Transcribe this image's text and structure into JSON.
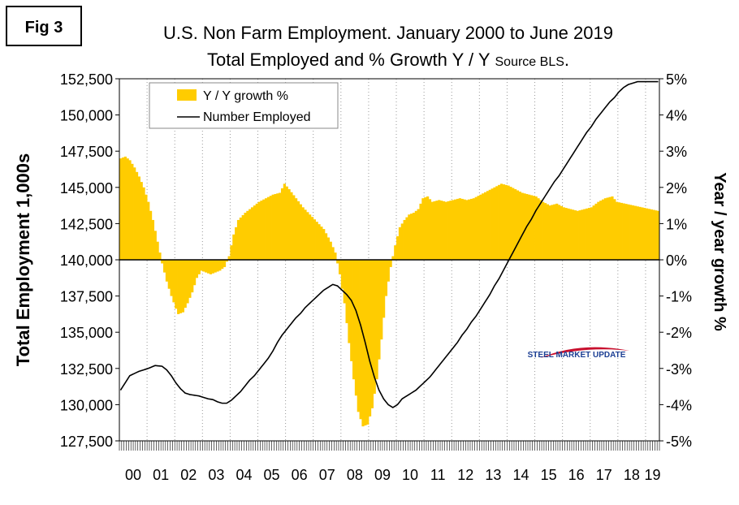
{
  "figure_label": "Fig 3",
  "chart_data": {
    "type": "bar",
    "title_line1": "U.S. Non Farm Employment. January 2000 to June 2019",
    "title_line2": "Total Employed and % Growth Y / Y",
    "title_source": "Source BLS",
    "title_suffix": ".",
    "ylabel_left": "Total Employment 1,000s",
    "ylabel_right": "Year / year growth %",
    "watermark": "STEEL MARKET UPDATE",
    "y_left_ticks": [
      "127,500",
      "130,000",
      "132,500",
      "135,000",
      "137,500",
      "140,000",
      "142,500",
      "145,000",
      "147,500",
      "150,000",
      "152,500"
    ],
    "y_left_lim": [
      127500,
      152500
    ],
    "y_right_ticks": [
      "-5%",
      "-4%",
      "-3%",
      "-2%",
      "-1%",
      "0%",
      "1%",
      "2%",
      "3%",
      "4%",
      "5%"
    ],
    "y_right_lim": [
      -5,
      5
    ],
    "x_ticks": [
      "00",
      "01",
      "02",
      "03",
      "04",
      "05",
      "06",
      "07",
      "08",
      "09",
      "10",
      "11",
      "12",
      "13",
      "14",
      "15",
      "16",
      "17",
      "18",
      "19"
    ],
    "x_range_months": "January 2000 to June 2019",
    "grid": "vertical dotted at year boundaries",
    "legend_position": "top-left",
    "colors": {
      "growth": "#ffcc00",
      "employed": "#000000"
    },
    "series": [
      {
        "name": "Y / Y growth %",
        "type": "bar",
        "axis": "right",
        "points": [
          [
            0,
            2.8
          ],
          [
            2,
            2.85
          ],
          [
            4,
            2.75
          ],
          [
            6,
            2.55
          ],
          [
            8,
            2.3
          ],
          [
            10,
            2.0
          ],
          [
            12,
            1.6
          ],
          [
            14,
            1.1
          ],
          [
            16,
            0.5
          ],
          [
            18,
            -0.1
          ],
          [
            20,
            -0.6
          ],
          [
            22,
            -1.0
          ],
          [
            24,
            -1.35
          ],
          [
            25,
            -1.5
          ],
          [
            27,
            -1.45
          ],
          [
            29,
            -1.2
          ],
          [
            31,
            -0.9
          ],
          [
            33,
            -0.5
          ],
          [
            35,
            -0.3
          ],
          [
            37,
            -0.35
          ],
          [
            39,
            -0.4
          ],
          [
            41,
            -0.35
          ],
          [
            43,
            -0.3
          ],
          [
            45,
            -0.2
          ],
          [
            47,
            0.1
          ],
          [
            49,
            0.7
          ],
          [
            51,
            1.1
          ],
          [
            54,
            1.3
          ],
          [
            57,
            1.45
          ],
          [
            60,
            1.6
          ],
          [
            63,
            1.7
          ],
          [
            66,
            1.8
          ],
          [
            69,
            1.85
          ],
          [
            71,
            2.1
          ],
          [
            73,
            1.95
          ],
          [
            76,
            1.7
          ],
          [
            79,
            1.45
          ],
          [
            82,
            1.25
          ],
          [
            85,
            1.05
          ],
          [
            88,
            0.85
          ],
          [
            91,
            0.5
          ],
          [
            93,
            0.2
          ],
          [
            95,
            -0.4
          ],
          [
            97,
            -1.2
          ],
          [
            99,
            -2.3
          ],
          [
            101,
            -3.3
          ],
          [
            103,
            -4.2
          ],
          [
            105,
            -4.6
          ],
          [
            107,
            -4.55
          ],
          [
            109,
            -4.1
          ],
          [
            111,
            -3.3
          ],
          [
            113,
            -2.2
          ],
          [
            115,
            -1.0
          ],
          [
            117,
            -0.2
          ],
          [
            119,
            0.4
          ],
          [
            121,
            0.9
          ],
          [
            123,
            1.1
          ],
          [
            125,
            1.25
          ],
          [
            127,
            1.3
          ],
          [
            129,
            1.4
          ],
          [
            131,
            1.7
          ],
          [
            133,
            1.75
          ],
          [
            135,
            1.6
          ],
          [
            138,
            1.65
          ],
          [
            141,
            1.6
          ],
          [
            144,
            1.65
          ],
          [
            147,
            1.7
          ],
          [
            150,
            1.65
          ],
          [
            153,
            1.7
          ],
          [
            156,
            1.8
          ],
          [
            159,
            1.9
          ],
          [
            162,
            2.0
          ],
          [
            165,
            2.1
          ],
          [
            168,
            2.05
          ],
          [
            171,
            1.95
          ],
          [
            174,
            1.85
          ],
          [
            177,
            1.8
          ],
          [
            180,
            1.75
          ],
          [
            183,
            1.6
          ],
          [
            186,
            1.5
          ],
          [
            189,
            1.55
          ],
          [
            192,
            1.45
          ],
          [
            195,
            1.4
          ],
          [
            198,
            1.35
          ],
          [
            201,
            1.4
          ],
          [
            204,
            1.45
          ],
          [
            207,
            1.6
          ],
          [
            210,
            1.7
          ],
          [
            213,
            1.75
          ],
          [
            215,
            1.6
          ],
          [
            233,
            1.35
          ]
        ]
      },
      {
        "name": "Number Employed",
        "type": "line",
        "axis": "left",
        "points": [
          [
            0,
            131000
          ],
          [
            4,
            132000
          ],
          [
            8,
            132300
          ],
          [
            12,
            132500
          ],
          [
            15,
            132700
          ],
          [
            18,
            132650
          ],
          [
            20,
            132400
          ],
          [
            22,
            132000
          ],
          [
            24,
            131500
          ],
          [
            26,
            131100
          ],
          [
            28,
            130800
          ],
          [
            30,
            130700
          ],
          [
            32,
            130650
          ],
          [
            34,
            130600
          ],
          [
            36,
            130500
          ],
          [
            38,
            130400
          ],
          [
            40,
            130350
          ],
          [
            42,
            130200
          ],
          [
            44,
            130100
          ],
          [
            46,
            130100
          ],
          [
            48,
            130300
          ],
          [
            50,
            130600
          ],
          [
            52,
            130900
          ],
          [
            54,
            131300
          ],
          [
            56,
            131700
          ],
          [
            58,
            132000
          ],
          [
            60,
            132400
          ],
          [
            62,
            132800
          ],
          [
            64,
            133200
          ],
          [
            66,
            133700
          ],
          [
            68,
            134300
          ],
          [
            70,
            134800
          ],
          [
            72,
            135200
          ],
          [
            74,
            135600
          ],
          [
            76,
            136000
          ],
          [
            78,
            136300
          ],
          [
            80,
            136700
          ],
          [
            82,
            137000
          ],
          [
            84,
            137300
          ],
          [
            86,
            137600
          ],
          [
            88,
            137900
          ],
          [
            90,
            138100
          ],
          [
            92,
            138300
          ],
          [
            94,
            138200
          ],
          [
            96,
            137900
          ],
          [
            98,
            137600
          ],
          [
            100,
            137200
          ],
          [
            102,
            136500
          ],
          [
            104,
            135500
          ],
          [
            106,
            134300
          ],
          [
            108,
            133000
          ],
          [
            110,
            131900
          ],
          [
            112,
            131000
          ],
          [
            114,
            130400
          ],
          [
            116,
            130000
          ],
          [
            118,
            129800
          ],
          [
            120,
            130000
          ],
          [
            122,
            130400
          ],
          [
            124,
            130600
          ],
          [
            126,
            130800
          ],
          [
            128,
            131000
          ],
          [
            130,
            131300
          ],
          [
            132,
            131600
          ],
          [
            134,
            131900
          ],
          [
            136,
            132300
          ],
          [
            138,
            132700
          ],
          [
            140,
            133100
          ],
          [
            142,
            133500
          ],
          [
            144,
            133900
          ],
          [
            146,
            134300
          ],
          [
            148,
            134800
          ],
          [
            150,
            135200
          ],
          [
            152,
            135700
          ],
          [
            154,
            136100
          ],
          [
            156,
            136600
          ],
          [
            158,
            137100
          ],
          [
            160,
            137600
          ],
          [
            162,
            138200
          ],
          [
            164,
            138700
          ],
          [
            166,
            139300
          ],
          [
            168,
            139900
          ],
          [
            170,
            140500
          ],
          [
            172,
            141100
          ],
          [
            174,
            141700
          ],
          [
            176,
            142300
          ],
          [
            178,
            142800
          ],
          [
            180,
            143400
          ],
          [
            182,
            143900
          ],
          [
            184,
            144400
          ],
          [
            186,
            144900
          ],
          [
            188,
            145400
          ],
          [
            190,
            145800
          ],
          [
            192,
            146300
          ],
          [
            194,
            146800
          ],
          [
            196,
            147300
          ],
          [
            198,
            147800
          ],
          [
            200,
            148300
          ],
          [
            202,
            148800
          ],
          [
            204,
            149200
          ],
          [
            206,
            149700
          ],
          [
            208,
            150100
          ],
          [
            210,
            150500
          ],
          [
            212,
            150900
          ],
          [
            214,
            151200
          ],
          [
            216,
            151600
          ],
          [
            218,
            151900
          ],
          [
            220,
            152100
          ],
          [
            222,
            152200
          ],
          [
            224,
            152300
          ],
          [
            226,
            152300
          ],
          [
            228,
            152300
          ],
          [
            230,
            152300
          ],
          [
            233,
            152300
          ]
        ]
      }
    ]
  }
}
